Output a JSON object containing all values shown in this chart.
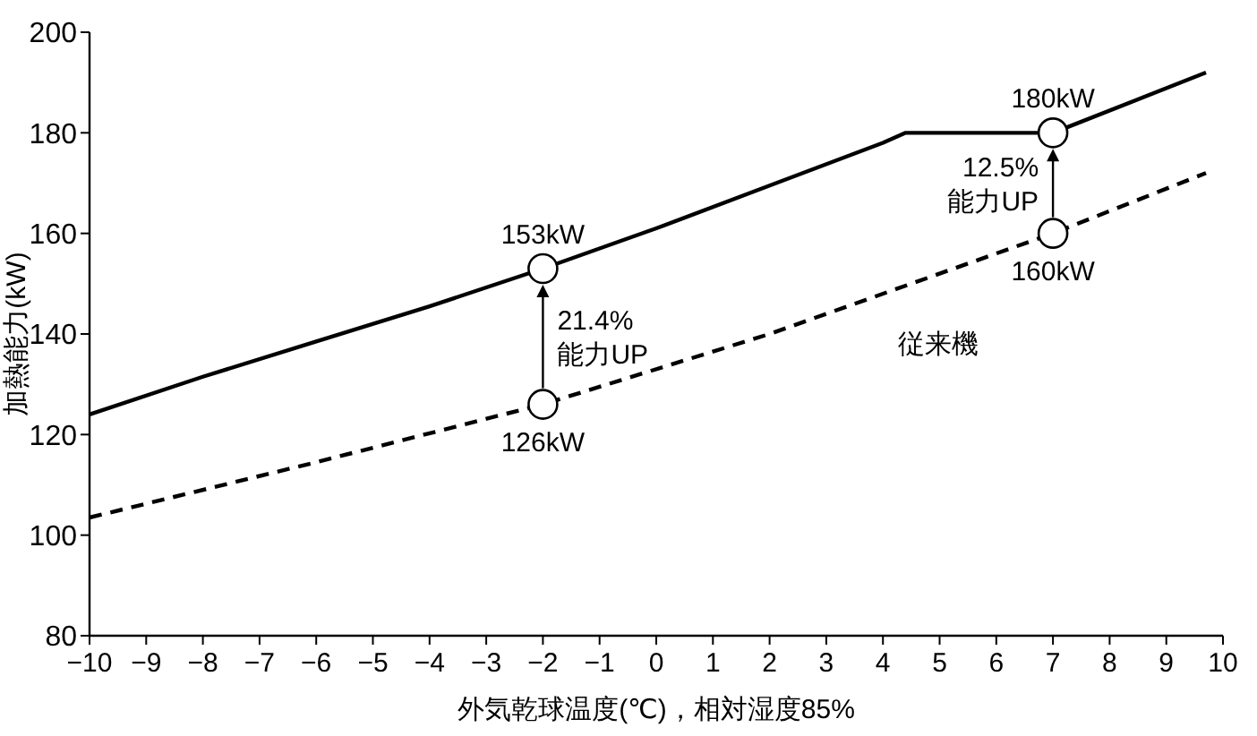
{
  "chart_data": {
    "type": "line",
    "xlabel": "外気乾球温度(℃)，相対湿度85%",
    "ylabel": "加熱能力(kW)",
    "xlim": [
      -10,
      10
    ],
    "ylim": [
      80,
      200
    ],
    "xticks": [
      {
        "value": -10,
        "label": "−10"
      },
      {
        "value": -9,
        "label": "−9"
      },
      {
        "value": -8,
        "label": "−8"
      },
      {
        "value": -7,
        "label": "−7"
      },
      {
        "value": -6,
        "label": "−6"
      },
      {
        "value": -5,
        "label": "−5"
      },
      {
        "value": -4,
        "label": "−4"
      },
      {
        "value": -3,
        "label": "−3"
      },
      {
        "value": -2,
        "label": "−2"
      },
      {
        "value": -1,
        "label": "−1"
      },
      0,
      1,
      2,
      3,
      4,
      5,
      6,
      7,
      8,
      9,
      10
    ],
    "yticks": [
      80,
      100,
      120,
      140,
      160,
      180,
      200
    ],
    "grid": false,
    "marker": "none",
    "series": [
      {
        "color": "#000000",
        "line_style": "solid",
        "x": [
          -10,
          -8,
          -6,
          -4,
          -2,
          0,
          2,
          4,
          4.4,
          7,
          9.7
        ],
        "values": [
          124,
          131.5,
          138.5,
          145.5,
          153,
          161,
          169.5,
          178,
          180,
          180,
          192
        ]
      },
      {
        "name": "従来機",
        "color": "#000000",
        "line_style": "dashed",
        "x": [
          -10,
          -6,
          -2,
          2,
          7,
          9.7
        ],
        "values": [
          103.5,
          114.5,
          126,
          140,
          160,
          172
        ]
      },
      {
        "type": "scatter",
        "color": "#000000",
        "marker": "circle",
        "x": [
          -2,
          -2,
          7,
          7
        ],
        "values": [
          153,
          126,
          180,
          160
        ],
        "value_labels": [
          "153kW",
          "126kW",
          "180kW",
          "160kW"
        ]
      }
    ],
    "annotations": [
      {
        "text": "21.4%\n能力UP",
        "x": -2,
        "y": 153
      },
      {
        "text": "12.5%\n能力UP",
        "x": 7,
        "y": 180
      }
    ]
  }
}
